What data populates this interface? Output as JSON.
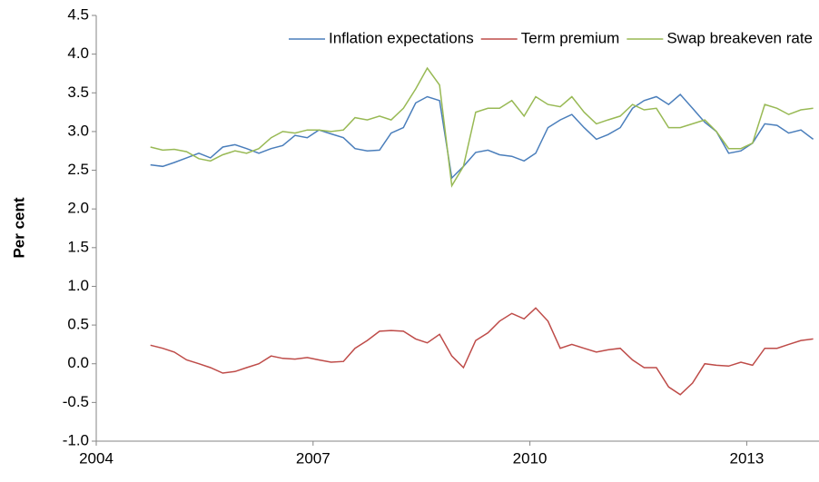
{
  "chart_data": {
    "type": "line",
    "y_label": "Per cent",
    "xlim": [
      2004,
      2014
    ],
    "xticks": [
      2004,
      2007,
      2010,
      2013
    ],
    "ylim": [
      -1,
      4.5
    ],
    "yticks": [
      {
        "value": -1,
        "label": "-1.0"
      },
      -0.5,
      {
        "value": 0,
        "label": "0.0"
      },
      0.5,
      {
        "value": 1,
        "label": "1.0"
      },
      1.5,
      {
        "value": 2,
        "label": "2.0"
      },
      2.5,
      {
        "value": 3,
        "label": "3.0"
      },
      3.5,
      {
        "value": 4,
        "label": "4.0"
      },
      4.5
    ],
    "legend": "top",
    "x": [
      2004.75,
      2004.92,
      2005.08,
      2005.25,
      2005.42,
      2005.58,
      2005.75,
      2005.92,
      2006.08,
      2006.25,
      2006.42,
      2006.58,
      2006.75,
      2006.92,
      2007.08,
      2007.25,
      2007.42,
      2007.58,
      2007.75,
      2007.92,
      2008.08,
      2008.25,
      2008.42,
      2008.58,
      2008.75,
      2008.92,
      2009.08,
      2009.25,
      2009.42,
      2009.58,
      2009.75,
      2009.92,
      2010.08,
      2010.25,
      2010.42,
      2010.58,
      2010.75,
      2010.92,
      2011.08,
      2011.25,
      2011.42,
      2011.58,
      2011.75,
      2011.92,
      2012.08,
      2012.25,
      2012.42,
      2012.58,
      2012.75,
      2012.92,
      2013.08,
      2013.25,
      2013.42,
      2013.58,
      2013.75,
      2013.92
    ],
    "series": [
      {
        "name": "Inflation expectations",
        "color": "#4a7ebb",
        "values": [
          2.57,
          2.55,
          2.6,
          2.66,
          2.72,
          2.66,
          2.8,
          2.83,
          2.78,
          2.72,
          2.78,
          2.82,
          2.95,
          2.92,
          3.02,
          2.97,
          2.92,
          2.78,
          2.75,
          2.76,
          2.98,
          3.05,
          3.37,
          3.45,
          3.4,
          2.4,
          2.55,
          2.73,
          2.76,
          2.7,
          2.68,
          2.62,
          2.72,
          3.05,
          3.15,
          3.22,
          3.05,
          2.9,
          2.96,
          3.05,
          3.3,
          3.4,
          3.45,
          3.35,
          3.48,
          3.3,
          3.12,
          3,
          2.72,
          2.75,
          2.85,
          3.1,
          3.08,
          2.98,
          3.02,
          2.9
        ]
      },
      {
        "name": "Term premium",
        "color": "#be4b48",
        "values": [
          0.24,
          0.2,
          0.15,
          0.05,
          0,
          -0.05,
          -0.12,
          -0.1,
          -0.05,
          0,
          0.1,
          0.07,
          0.06,
          0.08,
          0.05,
          0.02,
          0.03,
          0.2,
          0.3,
          0.42,
          0.43,
          0.42,
          0.32,
          0.27,
          0.38,
          0.1,
          -0.05,
          0.3,
          0.4,
          0.55,
          0.65,
          0.58,
          0.72,
          0.55,
          0.2,
          0.25,
          0.2,
          0.15,
          0.18,
          0.2,
          0.05,
          -0.05,
          -0.05,
          -0.3,
          -0.4,
          -0.25,
          0,
          -0.02,
          -0.03,
          0.02,
          -0.02,
          0.2,
          0.2,
          0.25,
          0.3,
          0.32
        ]
      },
      {
        "name": "Swap breakeven rate",
        "color": "#98b954",
        "values": [
          2.8,
          2.76,
          2.77,
          2.74,
          2.65,
          2.62,
          2.7,
          2.75,
          2.72,
          2.78,
          2.92,
          3,
          2.98,
          3.02,
          3.02,
          3,
          3.02,
          3.18,
          3.15,
          3.2,
          3.15,
          3.3,
          3.55,
          3.82,
          3.6,
          2.3,
          2.55,
          3.25,
          3.3,
          3.3,
          3.4,
          3.2,
          3.45,
          3.35,
          3.32,
          3.45,
          3.25,
          3.1,
          3.15,
          3.2,
          3.35,
          3.28,
          3.3,
          3.05,
          3.05,
          3.1,
          3.15,
          3,
          2.78,
          2.78,
          2.85,
          3.35,
          3.3,
          3.22,
          3.28,
          3.3
        ]
      }
    ]
  }
}
